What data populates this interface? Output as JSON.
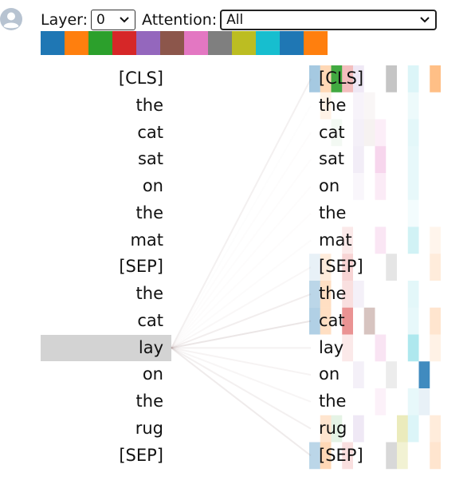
{
  "controls": {
    "layer_label": "Layer:",
    "layer_value": "0",
    "attention_label": "Attention:",
    "attention_value": "All"
  },
  "avatar": {
    "icon": "user-avatar-icon"
  },
  "head_colors": [
    "#1f77b4",
    "#ff7f0e",
    "#2ca02c",
    "#d62728",
    "#9467bd",
    "#8c564b",
    "#e377c2",
    "#7f7f7f",
    "#bcbd22",
    "#17becf",
    "#1f77b4",
    "#ff7f0e"
  ],
  "left_tokens": [
    "[CLS]",
    "the",
    "cat",
    "sat",
    "on",
    "the",
    "mat",
    "[SEP]",
    "the",
    "cat",
    "lay",
    "on",
    "the",
    "rug",
    "[SEP]"
  ],
  "right_tokens": [
    "[CLS]",
    "the",
    "cat",
    "sat",
    "on",
    "the",
    "mat",
    "[SEP]",
    "the",
    "cat",
    "lay",
    "on",
    "the",
    "rug",
    "[SEP]"
  ],
  "selected_index": 10,
  "attention_from_selected": [
    0.22,
    0.03,
    0.04,
    0.05,
    0.05,
    0.05,
    0.06,
    0.12,
    0.25,
    0.38,
    0.2,
    0.18,
    0.15,
    0.22,
    0.3
  ],
  "head_attention": [
    {
      "token": "[CLS]",
      "heads": [
        {
          "h": 0,
          "v": 0.4
        },
        {
          "h": 1,
          "v": 0.3
        },
        {
          "h": 2,
          "v": 0.9
        },
        {
          "h": 3,
          "v": 0.3
        },
        {
          "h": 4,
          "v": 0.15
        },
        {
          "h": 7,
          "v": 0.45
        },
        {
          "h": 9,
          "v": 0.15
        },
        {
          "h": 11,
          "v": 0.5
        }
      ]
    },
    {
      "token": "the",
      "heads": [
        {
          "h": 1,
          "v": 0.1
        },
        {
          "h": 4,
          "v": 0.08
        },
        {
          "h": 5,
          "v": 0.05
        },
        {
          "h": 9,
          "v": 0.08
        }
      ]
    },
    {
      "token": "cat",
      "heads": [
        {
          "h": 2,
          "v": 0.06
        },
        {
          "h": 4,
          "v": 0.1
        },
        {
          "h": 5,
          "v": 0.08
        },
        {
          "h": 6,
          "v": 0.12
        },
        {
          "h": 9,
          "v": 0.12
        }
      ]
    },
    {
      "token": "sat",
      "heads": [
        {
          "h": 4,
          "v": 0.12
        },
        {
          "h": 6,
          "v": 0.3
        },
        {
          "h": 9,
          "v": 0.1
        }
      ]
    },
    {
      "token": "on",
      "heads": [
        {
          "h": 4,
          "v": 0.06
        },
        {
          "h": 6,
          "v": 0.15
        },
        {
          "h": 9,
          "v": 0.1
        }
      ]
    },
    {
      "token": "the",
      "heads": [
        {
          "h": 9,
          "v": 0.05
        }
      ]
    },
    {
      "token": "mat",
      "heads": [
        {
          "h": 3,
          "v": 0.1
        },
        {
          "h": 6,
          "v": 0.18
        },
        {
          "h": 9,
          "v": 0.2
        },
        {
          "h": 11,
          "v": 0.08
        }
      ]
    },
    {
      "token": "[SEP]",
      "heads": [
        {
          "h": 0,
          "v": 0.1
        },
        {
          "h": 1,
          "v": 0.15
        },
        {
          "h": 3,
          "v": 0.2
        },
        {
          "h": 7,
          "v": 0.2
        },
        {
          "h": 11,
          "v": 0.15
        }
      ]
    },
    {
      "token": "the",
      "heads": [
        {
          "h": 0,
          "v": 0.3
        },
        {
          "h": 1,
          "v": 0.25
        },
        {
          "h": 3,
          "v": 0.15
        },
        {
          "h": 4,
          "v": 0.1
        },
        {
          "h": 9,
          "v": 0.12
        }
      ]
    },
    {
      "token": "cat",
      "heads": [
        {
          "h": 0,
          "v": 0.35
        },
        {
          "h": 1,
          "v": 0.25
        },
        {
          "h": 3,
          "v": 0.5
        },
        {
          "h": 5,
          "v": 0.35
        },
        {
          "h": 9,
          "v": 0.1
        },
        {
          "h": 11,
          "v": 0.2
        }
      ]
    },
    {
      "token": "lay",
      "heads": [
        {
          "h": 3,
          "v": 0.1
        },
        {
          "h": 6,
          "v": 0.2
        },
        {
          "h": 9,
          "v": 0.35
        },
        {
          "h": 11,
          "v": 0.1
        }
      ]
    },
    {
      "token": "on",
      "heads": [
        {
          "h": 4,
          "v": 0.1
        },
        {
          "h": 7,
          "v": 0.15
        },
        {
          "h": 10,
          "v": 0.85
        }
      ]
    },
    {
      "token": "the",
      "heads": [
        {
          "h": 6,
          "v": 0.1
        },
        {
          "h": 9,
          "v": 0.1
        },
        {
          "h": 10,
          "v": 0.1
        }
      ]
    },
    {
      "token": "rug",
      "heads": [
        {
          "h": 1,
          "v": 0.2
        },
        {
          "h": 2,
          "v": 0.12
        },
        {
          "h": 4,
          "v": 0.15
        },
        {
          "h": 8,
          "v": 0.3
        },
        {
          "h": 9,
          "v": 0.15
        },
        {
          "h": 11,
          "v": 0.15
        }
      ]
    },
    {
      "token": "[SEP]",
      "heads": [
        {
          "h": 0,
          "v": 0.3
        },
        {
          "h": 1,
          "v": 0.3
        },
        {
          "h": 3,
          "v": 0.15
        },
        {
          "h": 7,
          "v": 0.3
        },
        {
          "h": 8,
          "v": 0.2
        },
        {
          "h": 11,
          "v": 0.2
        }
      ]
    }
  ]
}
